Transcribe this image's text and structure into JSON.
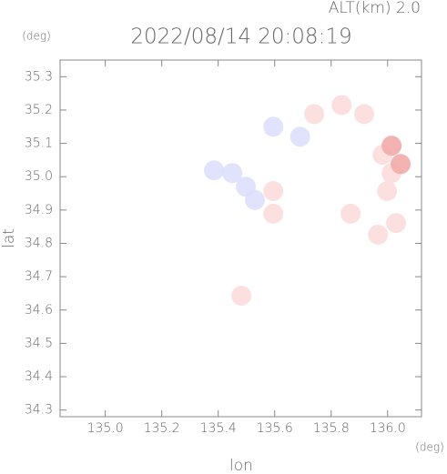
{
  "chart_data": {
    "type": "scatter",
    "title": "2022/08/14 20:08:19",
    "subtitle": "ALT(km) 2.0",
    "y_unit": "(deg)",
    "x_unit": "(deg)",
    "xlabel": "lon",
    "ylabel": "lat",
    "xlim": [
      134.84,
      136.12
    ],
    "ylim": [
      34.28,
      35.35
    ],
    "xticks": [
      {
        "value": 135,
        "label": "135.0"
      },
      135.2,
      135.4,
      135.6,
      135.8,
      {
        "value": 136,
        "label": "136.0"
      }
    ],
    "yticks": [
      34.3,
      34.4,
      34.5,
      34.6,
      34.7,
      34.8,
      34.9,
      {
        "value": 35,
        "label": "35.0"
      },
      35.1,
      35.2,
      35.3
    ],
    "series": [
      {
        "color": "#dcdefb",
        "x": [
          135.385,
          135.45,
          135.498,
          135.53,
          135.595,
          135.69
        ],
        "y": [
          35.019,
          35.011,
          34.97,
          34.93,
          35.15,
          35.12
        ]
      },
      {
        "color": "#fbdada",
        "x": [
          135.595,
          135.595,
          135.74,
          135.837,
          135.917,
          135.982,
          136.014,
          135.998,
          135.869,
          136.03,
          135.966,
          135.482
        ],
        "y": [
          34.957,
          34.889,
          35.188,
          35.215,
          35.188,
          35.066,
          35.011,
          34.957,
          34.889,
          34.861,
          34.826,
          34.643
        ]
      },
      {
        "color": "#f2a6a6",
        "x": [
          136.014,
          136.046
        ],
        "y": [
          35.093,
          35.038
        ]
      }
    ]
  }
}
